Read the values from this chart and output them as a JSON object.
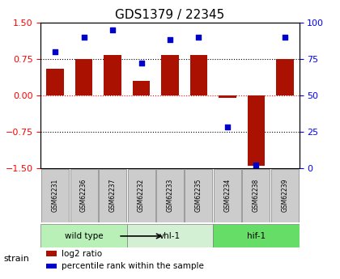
{
  "title": "GDS1379 / 22345",
  "samples": [
    "GSM62231",
    "GSM62236",
    "GSM62237",
    "GSM62232",
    "GSM62233",
    "GSM62235",
    "GSM62234",
    "GSM62238",
    "GSM62239"
  ],
  "log2_ratio": [
    0.55,
    0.75,
    0.82,
    0.3,
    0.82,
    0.82,
    -0.05,
    -1.45,
    0.75
  ],
  "percentile_rank": [
    80,
    90,
    95,
    72,
    88,
    90,
    28,
    2,
    90
  ],
  "groups": [
    {
      "label": "wild type",
      "indices": [
        0,
        1,
        2
      ],
      "color": "#b8f0b8"
    },
    {
      "label": "vhl-1",
      "indices": [
        3,
        4,
        5
      ],
      "color": "#d4f0d4"
    },
    {
      "label": "hif-1",
      "indices": [
        6,
        7,
        8
      ],
      "color": "#66dd66"
    }
  ],
  "bar_color": "#aa1100",
  "scatter_color": "#0000cc",
  "ylim_left": [
    -1.5,
    1.5
  ],
  "ylim_right": [
    0,
    100
  ],
  "yticks_left": [
    -1.5,
    -0.75,
    0,
    0.75,
    1.5
  ],
  "yticks_right": [
    0,
    25,
    50,
    75,
    100
  ],
  "hline_red": 0,
  "hlines_black": [
    -0.75,
    0.75
  ],
  "bar_width": 0.6,
  "legend_items": [
    {
      "color": "#aa1100",
      "label": "log2 ratio"
    },
    {
      "color": "#0000cc",
      "label": "percentile rank within the sample"
    }
  ],
  "strain_label": "strain",
  "strain_color": "#cccccc"
}
